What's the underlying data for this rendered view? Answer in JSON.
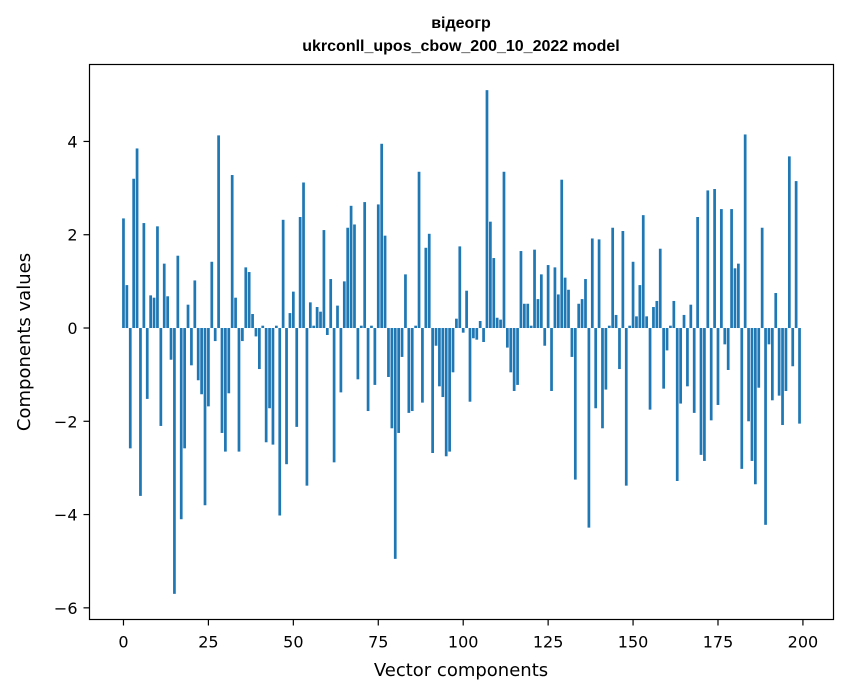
{
  "chart_data": {
    "type": "bar",
    "title": [
      "відеогр",
      "ukrconll_upos_cbow_200_10_2022 model"
    ],
    "xlabel": "Vector components",
    "ylabel": "Components values",
    "xlim": [
      -10,
      209
    ],
    "ylim": [
      -6.25,
      5.65
    ],
    "xticks": [
      0,
      25,
      50,
      75,
      100,
      125,
      150,
      175,
      200
    ],
    "yticks": [
      -6,
      -4,
      -2,
      0,
      2,
      4
    ],
    "ytick_labels": [
      "−6",
      "−4",
      "−2",
      "0",
      "2",
      "4"
    ],
    "grid": false,
    "color": "#1f77b4",
    "values": [
      2.35,
      0.92,
      -2.58,
      3.2,
      3.85,
      -3.6,
      2.25,
      -1.52,
      0.7,
      0.65,
      2.18,
      -2.1,
      1.38,
      0.68,
      -0.68,
      -5.7,
      1.55,
      -4.1,
      -2.58,
      0.5,
      -0.8,
      1.02,
      -1.12,
      -1.42,
      -3.8,
      -1.68,
      1.42,
      -0.28,
      4.13,
      -2.25,
      -2.65,
      -1.4,
      3.28,
      0.65,
      -2.65,
      -0.28,
      1.3,
      1.2,
      0.3,
      -0.18,
      -0.88,
      0.05,
      -2.45,
      -1.72,
      -2.5,
      0.05,
      -4.02,
      2.32,
      -2.92,
      0.32,
      0.78,
      -2.12,
      2.38,
      3.12,
      -3.38,
      0.55,
      0.05,
      0.45,
      0.35,
      2.1,
      -0.15,
      1.05,
      -2.88,
      0.48,
      -1.38,
      1.0,
      2.15,
      2.62,
      2.22,
      -1.1,
      0.05,
      2.7,
      -1.78,
      0.05,
      -1.22,
      2.65,
      3.95,
      1.98,
      -1.05,
      -2.15,
      -4.95,
      -2.25,
      -0.62,
      1.15,
      -1.82,
      -1.78,
      0.05,
      3.35,
      -1.6,
      1.72,
      2.02,
      -2.68,
      -0.38,
      -1.25,
      -1.48,
      -2.75,
      -2.65,
      -0.95,
      0.2,
      1.75,
      -0.1,
      0.8,
      -1.58,
      -0.22,
      -0.25,
      0.15,
      -0.3,
      5.1,
      2.28,
      1.5,
      0.22,
      0.18,
      3.35,
      -0.42,
      -0.95,
      -1.35,
      -1.22,
      1.65,
      0.52,
      0.52,
      0.05,
      1.68,
      0.62,
      1.15,
      -0.38,
      1.35,
      -1.35,
      1.3,
      0.72,
      3.18,
      1.08,
      0.82,
      -0.62,
      -3.25,
      0.52,
      0.62,
      1.05,
      -4.28,
      1.92,
      -1.72,
      1.9,
      -2.15,
      -1.32,
      0.05,
      2.15,
      0.28,
      -0.88,
      2.08,
      -3.38,
      0.05,
      1.42,
      0.25,
      0.92,
      2.42,
      0.25,
      -1.75,
      0.45,
      0.58,
      1.7,
      -1.3,
      -0.48,
      0.05,
      0.58,
      -3.28,
      -1.62,
      0.28,
      -1.25,
      0.5,
      -1.82,
      2.38,
      -2.72,
      -2.85,
      2.95,
      -1.98,
      2.98,
      -1.65,
      2.55,
      -0.35,
      -0.9,
      2.55,
      1.28,
      1.38,
      -3.02,
      4.15,
      -2.0,
      -2.85,
      -3.35,
      -1.28,
      2.15,
      -4.22,
      -0.35,
      -1.55,
      0.75,
      -1.45,
      -2.08,
      -1.35,
      3.68,
      -0.82,
      3.15,
      -2.05
    ]
  }
}
